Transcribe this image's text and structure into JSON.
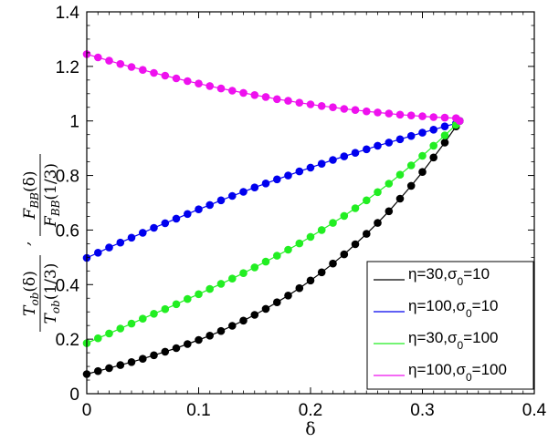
{
  "chart_data": {
    "type": "line",
    "title": "",
    "xlabel": "δ",
    "ylabel": "T_ob(δ)/T_ob(1/3) , F_BB(δ)/F_BB(1/3)",
    "ylabel_parts": {
      "left_num": "T",
      "left_num_sub": "ob",
      "left_num_arg": "(δ)",
      "left_den": "T",
      "left_den_sub": "ob",
      "left_den_arg": "(1/3)",
      "sep": ",",
      "right_num": "F",
      "right_num_sub": "BB",
      "right_num_arg": "(δ)",
      "right_den": "F",
      "right_den_sub": "BB",
      "right_den_arg": "(1/3)"
    },
    "xlim": [
      0,
      0.4
    ],
    "ylim": [
      0,
      1.4
    ],
    "xticks": [
      "0",
      "0.1",
      "0.2",
      "0.3",
      "0.4"
    ],
    "yticks": [
      "0",
      "0.2",
      "0.4",
      "0.6",
      "0.8",
      "1",
      "1.2",
      "1.4"
    ],
    "grid": false,
    "legend_position": "lower right",
    "markers": true,
    "x": [
      0,
      0.01,
      0.02,
      0.03,
      0.04,
      0.05,
      0.06,
      0.07,
      0.08,
      0.09,
      0.1,
      0.11,
      0.12,
      0.13,
      0.14,
      0.15,
      0.16,
      0.17,
      0.18,
      0.19,
      0.2,
      0.21,
      0.22,
      0.23,
      0.24,
      0.25,
      0.26,
      0.27,
      0.28,
      0.29,
      0.3,
      0.31,
      0.32,
      0.33,
      0.3333
    ],
    "series": [
      {
        "name": "η=30,σ0=10",
        "legend_main": "η=30,σ",
        "legend_sub": "0",
        "legend_tail": "=10",
        "color": "#000000",
        "values": [
          0.072,
          0.083,
          0.094,
          0.105,
          0.116,
          0.128,
          0.141,
          0.154,
          0.167,
          0.182,
          0.197,
          0.213,
          0.23,
          0.249,
          0.268,
          0.289,
          0.311,
          0.335,
          0.36,
          0.387,
          0.415,
          0.445,
          0.477,
          0.511,
          0.548,
          0.586,
          0.626,
          0.669,
          0.715,
          0.762,
          0.813,
          0.866,
          0.921,
          0.98,
          1.0
        ]
      },
      {
        "name": "η=100,σ0=10",
        "legend_main": "η=100,σ",
        "legend_sub": "0",
        "legend_tail": "=10",
        "color": "#0000ee",
        "values": [
          0.498,
          0.517,
          0.536,
          0.554,
          0.572,
          0.59,
          0.608,
          0.625,
          0.642,
          0.659,
          0.676,
          0.692,
          0.709,
          0.725,
          0.74,
          0.756,
          0.771,
          0.786,
          0.8,
          0.815,
          0.829,
          0.843,
          0.857,
          0.87,
          0.883,
          0.896,
          0.909,
          0.921,
          0.933,
          0.945,
          0.957,
          0.968,
          0.98,
          0.991,
          1.0
        ]
      },
      {
        "name": "η=30,σ0=100",
        "legend_main": "η=30,σ",
        "legend_sub": "0",
        "legend_tail": "=100",
        "color": "#22ee22",
        "values": [
          0.185,
          0.203,
          0.221,
          0.239,
          0.257,
          0.275,
          0.293,
          0.31,
          0.328,
          0.347,
          0.365,
          0.384,
          0.403,
          0.422,
          0.442,
          0.463,
          0.484,
          0.506,
          0.528,
          0.551,
          0.575,
          0.6,
          0.626,
          0.652,
          0.68,
          0.709,
          0.739,
          0.77,
          0.803,
          0.837,
          0.872,
          0.909,
          0.947,
          0.986,
          1.0
        ]
      },
      {
        "name": "η=100,σ0=100",
        "legend_main": "η=100,σ",
        "legend_sub": "0",
        "legend_tail": "=100",
        "color": "#ee11ee",
        "values": [
          1.245,
          1.233,
          1.221,
          1.209,
          1.198,
          1.187,
          1.176,
          1.166,
          1.156,
          1.146,
          1.137,
          1.128,
          1.119,
          1.111,
          1.103,
          1.095,
          1.088,
          1.08,
          1.074,
          1.067,
          1.061,
          1.055,
          1.05,
          1.044,
          1.04,
          1.035,
          1.031,
          1.027,
          1.023,
          1.02,
          1.017,
          1.014,
          1.012,
          1.01,
          1.0
        ]
      }
    ]
  }
}
